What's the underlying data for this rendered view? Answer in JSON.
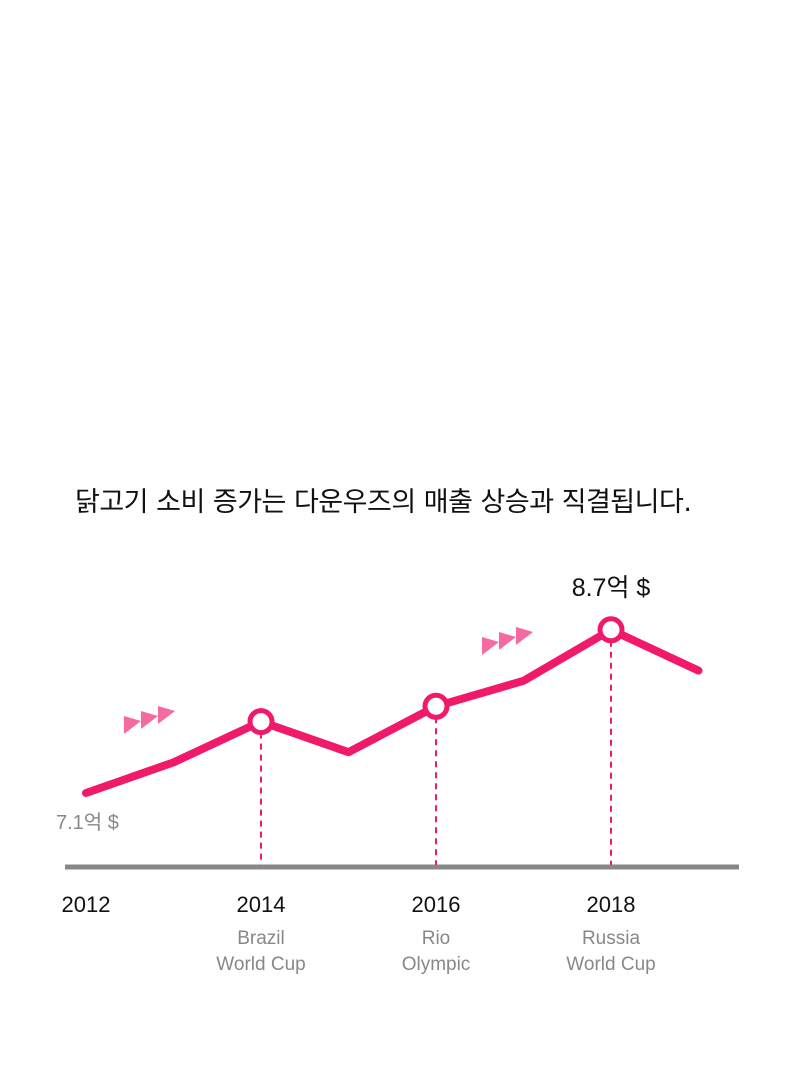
{
  "title": "닭고기 소비 증가는 다운우즈의 매출 상승과 직결됩니다.",
  "colors": {
    "line": "#f0196a",
    "axis": "#888888",
    "arrow": "#f56aa0"
  },
  "chart_data": {
    "type": "line",
    "x": [
      2012,
      2013,
      2014,
      2015,
      2016,
      2017,
      2018,
      2019
    ],
    "values": [
      7.1,
      7.4,
      7.8,
      7.5,
      7.95,
      8.2,
      8.7,
      8.3
    ],
    "unit": "억 $",
    "start_label": "7.1억 $",
    "peak_label": "8.7억 $",
    "tick_labels": [
      "2012",
      "2014",
      "2016",
      "2018"
    ],
    "events": [
      {
        "year": 2014,
        "lines": [
          "Brazil",
          "World Cup"
        ]
      },
      {
        "year": 2016,
        "lines": [
          "Rio",
          "Olympic"
        ]
      },
      {
        "year": 2018,
        "lines": [
          "Russia",
          "World Cup"
        ]
      }
    ],
    "highlighted_years": [
      2014,
      2016,
      2018
    ],
    "ylim": [
      6.7,
      8.7
    ]
  }
}
